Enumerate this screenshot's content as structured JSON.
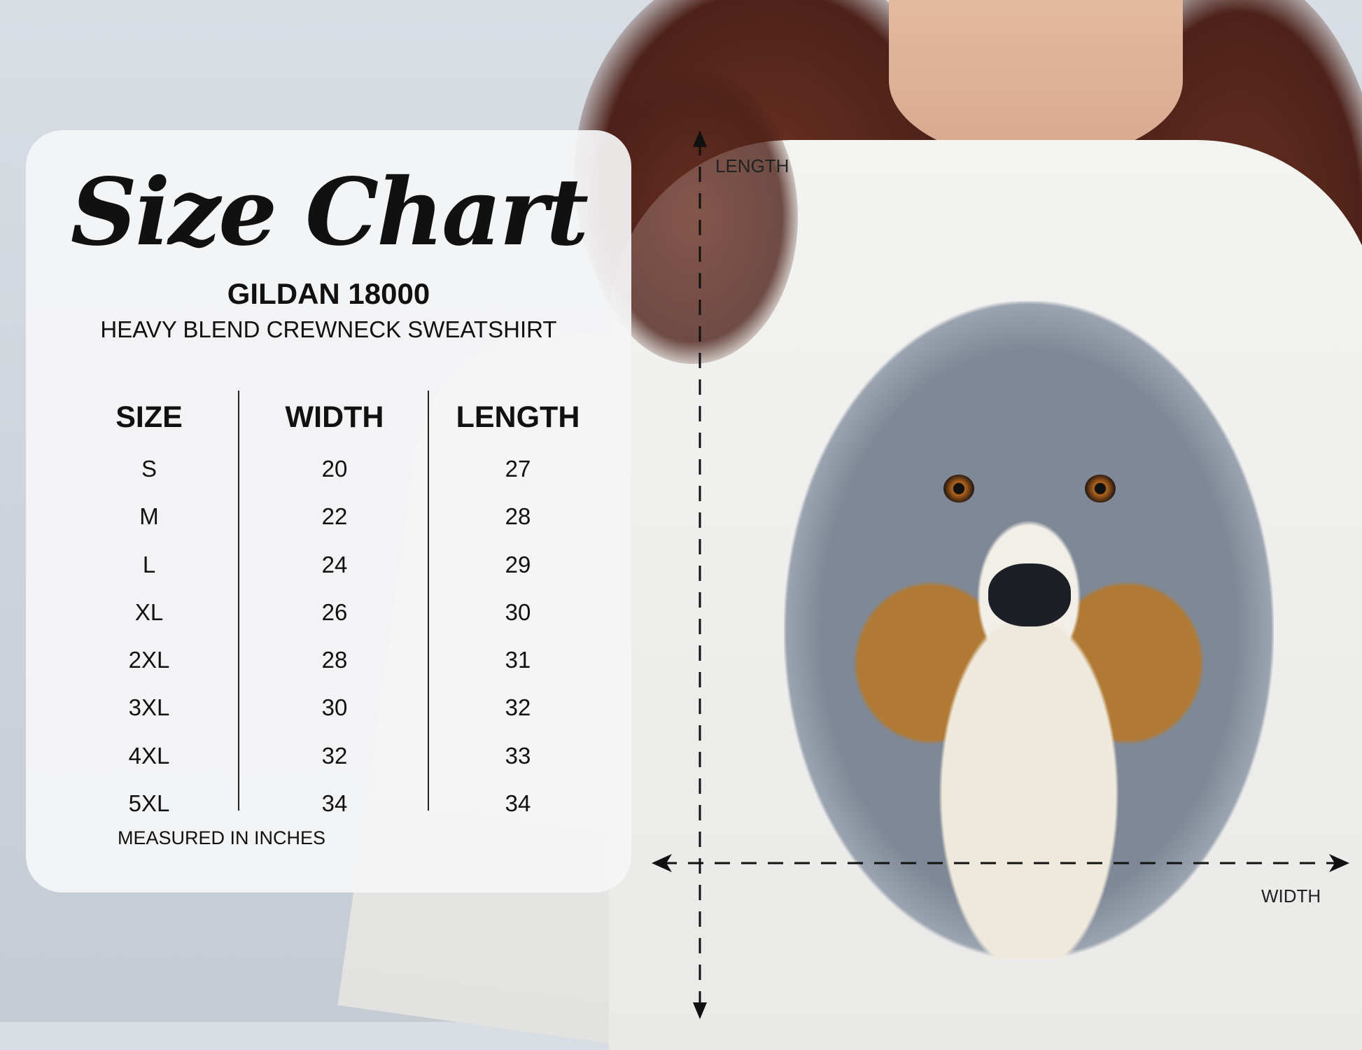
{
  "chart": {
    "title": "Size Chart",
    "brand": "GILDAN 18000",
    "product": "HEAVY BLEND CREWNECK SWEATSHIRT",
    "headers": [
      "SIZE",
      "WIDTH",
      "LENGTH"
    ],
    "sizes": [
      "S",
      "M",
      "L",
      "XL",
      "2XL",
      "3XL",
      "4XL",
      "5XL"
    ],
    "widths": [
      "20",
      "22",
      "24",
      "26",
      "28",
      "30",
      "32",
      "34"
    ],
    "lengths": [
      "27",
      "28",
      "29",
      "30",
      "31",
      "32",
      "33",
      "34"
    ],
    "footnote": "MEASURED IN INCHES"
  },
  "measure": {
    "length_label": "LENGTH",
    "width_label": "WIDTH"
  }
}
